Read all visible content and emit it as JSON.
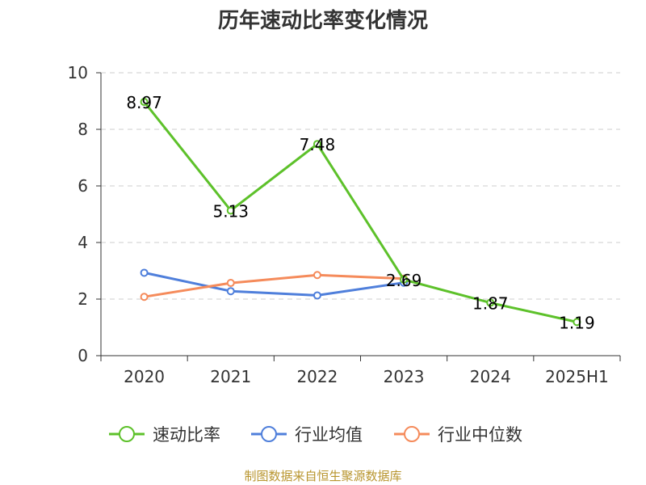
{
  "chart_data": {
    "type": "line",
    "title": "历年速动比率变化情况",
    "categories": [
      "2020",
      "2021",
      "2022",
      "2023",
      "2024",
      "2025H1"
    ],
    "ylim": [
      0,
      10
    ],
    "yticks": [
      "0",
      "2",
      "4",
      "6",
      "8",
      "10"
    ],
    "grid": true,
    "legend_position": "bottom",
    "series": [
      {
        "name": "速动比率",
        "color": "#5DC12A",
        "values": [
          8.97,
          5.13,
          7.48,
          2.69,
          1.87,
          1.19
        ],
        "labels": [
          "8.97",
          "5.13",
          "7.48",
          "2.69",
          "1.87",
          "1.19"
        ]
      },
      {
        "name": "行业均值",
        "color": "#4F7FDB",
        "values": [
          2.93,
          2.28,
          2.13,
          2.58,
          null,
          null
        ]
      },
      {
        "name": "行业中位数",
        "color": "#F58B5B",
        "values": [
          2.08,
          2.57,
          2.85,
          2.72,
          null,
          null
        ]
      }
    ],
    "source": "制图数据来自恒生聚源数据库"
  }
}
